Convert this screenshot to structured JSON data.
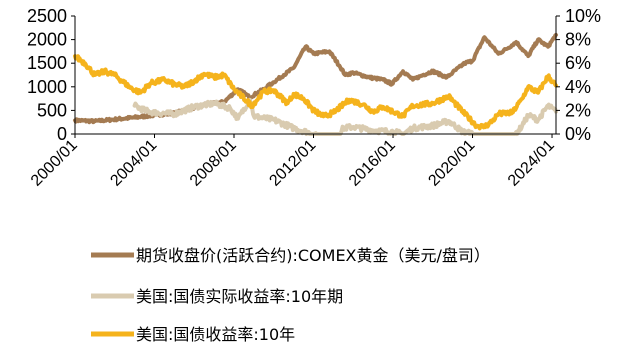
{
  "chart_data": {
    "type": "line",
    "title": "",
    "xlabel": "",
    "ylabel": "",
    "x_ticks": [
      "2000/01",
      "2004/01",
      "2008/01",
      "2012/01",
      "2016/01",
      "2020/01",
      "2024/01"
    ],
    "y_left": {
      "ticks": [
        "2500",
        "2000",
        "1500",
        "1000",
        "500",
        "0"
      ],
      "range": [
        0,
        2500
      ]
    },
    "y_right": {
      "ticks": [
        "10%",
        "8%",
        "6%",
        "4%",
        "2%",
        "0%"
      ],
      "range": [
        0,
        10
      ]
    },
    "x_range": [
      2000.0,
      2024.2
    ],
    "grid": false,
    "legend_position": "bottom",
    "series": [
      {
        "name": "期货收盘价(活跃合约):COMEX黄金（美元/盘司）",
        "axis": "left",
        "color": "#A47B52",
        "points": [
          [
            2000.0,
            290
          ],
          [
            2001.0,
            270
          ],
          [
            2002.0,
            310
          ],
          [
            2003.0,
            350
          ],
          [
            2004.0,
            400
          ],
          [
            2005.0,
            440
          ],
          [
            2006.0,
            560
          ],
          [
            2006.5,
            620
          ],
          [
            2007.5,
            680
          ],
          [
            2008.2,
            950
          ],
          [
            2008.8,
            780
          ],
          [
            2009.5,
            950
          ],
          [
            2010.0,
            1100
          ],
          [
            2010.5,
            1250
          ],
          [
            2011.0,
            1400
          ],
          [
            2011.6,
            1850
          ],
          [
            2012.0,
            1700
          ],
          [
            2012.8,
            1750
          ],
          [
            2013.3,
            1450
          ],
          [
            2013.6,
            1250
          ],
          [
            2014.0,
            1300
          ],
          [
            2014.8,
            1200
          ],
          [
            2015.5,
            1150
          ],
          [
            2015.95,
            1060
          ],
          [
            2016.5,
            1330
          ],
          [
            2017.0,
            1150
          ],
          [
            2017.5,
            1250
          ],
          [
            2018.0,
            1330
          ],
          [
            2018.7,
            1200
          ],
          [
            2019.0,
            1300
          ],
          [
            2019.6,
            1500
          ],
          [
            2020.0,
            1550
          ],
          [
            2020.6,
            2050
          ],
          [
            2021.0,
            1850
          ],
          [
            2021.3,
            1700
          ],
          [
            2021.7,
            1800
          ],
          [
            2022.2,
            1950
          ],
          [
            2022.8,
            1650
          ],
          [
            2023.3,
            2000
          ],
          [
            2023.8,
            1850
          ],
          [
            2024.2,
            2100
          ]
        ]
      },
      {
        "name": "美国:国债实际收益率:10年期",
        "axis": "right",
        "color": "#D9CBB0",
        "points": [
          [
            2003.0,
            2.4
          ],
          [
            2003.5,
            2.0
          ],
          [
            2004.0,
            1.8
          ],
          [
            2005.0,
            1.7
          ],
          [
            2006.0,
            2.3
          ],
          [
            2007.0,
            2.6
          ],
          [
            2007.8,
            2.2
          ],
          [
            2008.2,
            1.3
          ],
          [
            2008.8,
            2.9
          ],
          [
            2009.0,
            1.5
          ],
          [
            2010.0,
            1.2
          ],
          [
            2011.0,
            0.5
          ],
          [
            2012.0,
            0.0
          ],
          [
            2012.5,
            -0.6
          ],
          [
            2013.0,
            -0.6
          ],
          [
            2013.5,
            0.5
          ],
          [
            2014.0,
            0.6
          ],
          [
            2015.0,
            0.3
          ],
          [
            2016.0,
            0.2
          ],
          [
            2016.5,
            0.0
          ],
          [
            2017.0,
            0.5
          ],
          [
            2018.0,
            0.7
          ],
          [
            2018.8,
            1.1
          ],
          [
            2019.5,
            0.2
          ],
          [
            2020.0,
            0.0
          ],
          [
            2020.5,
            -1.0
          ],
          [
            2021.0,
            -0.9
          ],
          [
            2021.5,
            -1.1
          ],
          [
            2022.0,
            -0.5
          ],
          [
            2022.5,
            0.7
          ],
          [
            2022.8,
            1.6
          ],
          [
            2023.3,
            1.2
          ],
          [
            2023.8,
            2.4
          ],
          [
            2024.2,
            1.9
          ]
        ]
      },
      {
        "name": "美国:国债收益率:10年",
        "axis": "right",
        "color": "#F5B31C",
        "points": [
          [
            2000.0,
            6.6
          ],
          [
            2000.5,
            6.0
          ],
          [
            2001.0,
            5.0
          ],
          [
            2001.5,
            5.3
          ],
          [
            2002.0,
            5.0
          ],
          [
            2002.8,
            3.9
          ],
          [
            2003.3,
            3.5
          ],
          [
            2003.8,
            4.3
          ],
          [
            2004.5,
            4.6
          ],
          [
            2005.0,
            4.2
          ],
          [
            2005.5,
            4.0
          ],
          [
            2006.0,
            4.5
          ],
          [
            2006.5,
            5.1
          ],
          [
            2007.0,
            4.8
          ],
          [
            2007.5,
            5.0
          ],
          [
            2008.0,
            3.8
          ],
          [
            2008.9,
            2.4
          ],
          [
            2009.5,
            3.6
          ],
          [
            2010.0,
            3.7
          ],
          [
            2010.7,
            2.6
          ],
          [
            2011.0,
            3.4
          ],
          [
            2011.5,
            3.0
          ],
          [
            2012.0,
            2.0
          ],
          [
            2012.5,
            1.5
          ],
          [
            2013.0,
            1.8
          ],
          [
            2013.8,
            2.9
          ],
          [
            2014.5,
            2.5
          ],
          [
            2015.0,
            1.9
          ],
          [
            2015.5,
            2.3
          ],
          [
            2016.5,
            1.5
          ],
          [
            2017.0,
            2.4
          ],
          [
            2018.0,
            2.6
          ],
          [
            2018.8,
            3.2
          ],
          [
            2019.5,
            1.9
          ],
          [
            2020.2,
            0.7
          ],
          [
            2020.6,
            0.6
          ],
          [
            2021.0,
            1.1
          ],
          [
            2021.3,
            1.7
          ],
          [
            2022.0,
            1.8
          ],
          [
            2022.5,
            3.0
          ],
          [
            2022.8,
            4.0
          ],
          [
            2023.3,
            3.5
          ],
          [
            2023.8,
            4.9
          ],
          [
            2024.2,
            4.1
          ]
        ]
      }
    ]
  }
}
